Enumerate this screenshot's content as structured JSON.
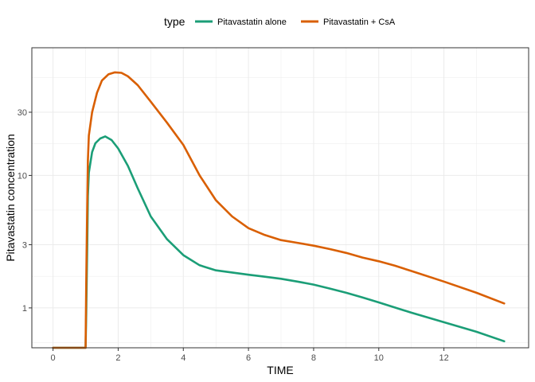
{
  "legend": {
    "title": "type"
  },
  "chart_data": {
    "type": "line",
    "xlabel": "TIME",
    "ylabel": "Pitavastatin concentration",
    "y_scale": "log",
    "xlim": [
      -0.65,
      14.6
    ],
    "ylim": [
      0.5,
      92
    ],
    "x_ticks": [
      0,
      2,
      4,
      6,
      8,
      10,
      12
    ],
    "y_ticks": [
      1,
      3,
      10,
      30
    ],
    "y_tick_labels": [
      "1",
      "3",
      "10",
      "30"
    ],
    "grid": true,
    "legend_position": "top",
    "series": [
      {
        "name": "Pitavastatin alone",
        "color": "#1b9e77",
        "x": [
          0,
          1.0,
          1.02,
          1.05,
          1.07,
          1.1,
          1.2,
          1.3,
          1.45,
          1.6,
          1.8,
          2.0,
          2.3,
          2.6,
          3.0,
          3.5,
          4.0,
          4.5,
          5.0,
          5.5,
          6.0,
          6.5,
          7.0,
          7.5,
          8.0,
          8.5,
          9.0,
          9.5,
          10.0,
          11.0,
          12.0,
          13.0,
          13.85
        ],
        "y": [
          0.5,
          0.5,
          0.9,
          3.0,
          7.0,
          10.5,
          15.0,
          17.5,
          19.0,
          19.7,
          18.5,
          16.0,
          11.8,
          8.0,
          4.9,
          3.3,
          2.5,
          2.1,
          1.92,
          1.85,
          1.78,
          1.72,
          1.66,
          1.58,
          1.5,
          1.4,
          1.3,
          1.2,
          1.1,
          0.92,
          0.78,
          0.66,
          0.56
        ]
      },
      {
        "name": "Pitavastatin + CsA",
        "color": "#d95f02",
        "x": [
          0,
          1.0,
          1.02,
          1.05,
          1.07,
          1.1,
          1.2,
          1.35,
          1.5,
          1.7,
          1.9,
          2.1,
          2.3,
          2.6,
          3.0,
          3.5,
          4.0,
          4.5,
          5.0,
          5.5,
          6.0,
          6.5,
          7.0,
          7.5,
          8.0,
          8.5,
          9.0,
          9.5,
          10.0,
          10.5,
          11.0,
          12.0,
          13.0,
          13.85
        ],
        "y": [
          0.5,
          0.5,
          1.5,
          6.0,
          13.0,
          20.0,
          30.0,
          42.0,
          52.0,
          58.0,
          60.0,
          59.5,
          56.0,
          48.0,
          36.0,
          25.0,
          17.0,
          10.0,
          6.5,
          4.9,
          4.0,
          3.55,
          3.25,
          3.1,
          2.95,
          2.78,
          2.6,
          2.4,
          2.25,
          2.08,
          1.9,
          1.58,
          1.3,
          1.08
        ]
      }
    ]
  }
}
